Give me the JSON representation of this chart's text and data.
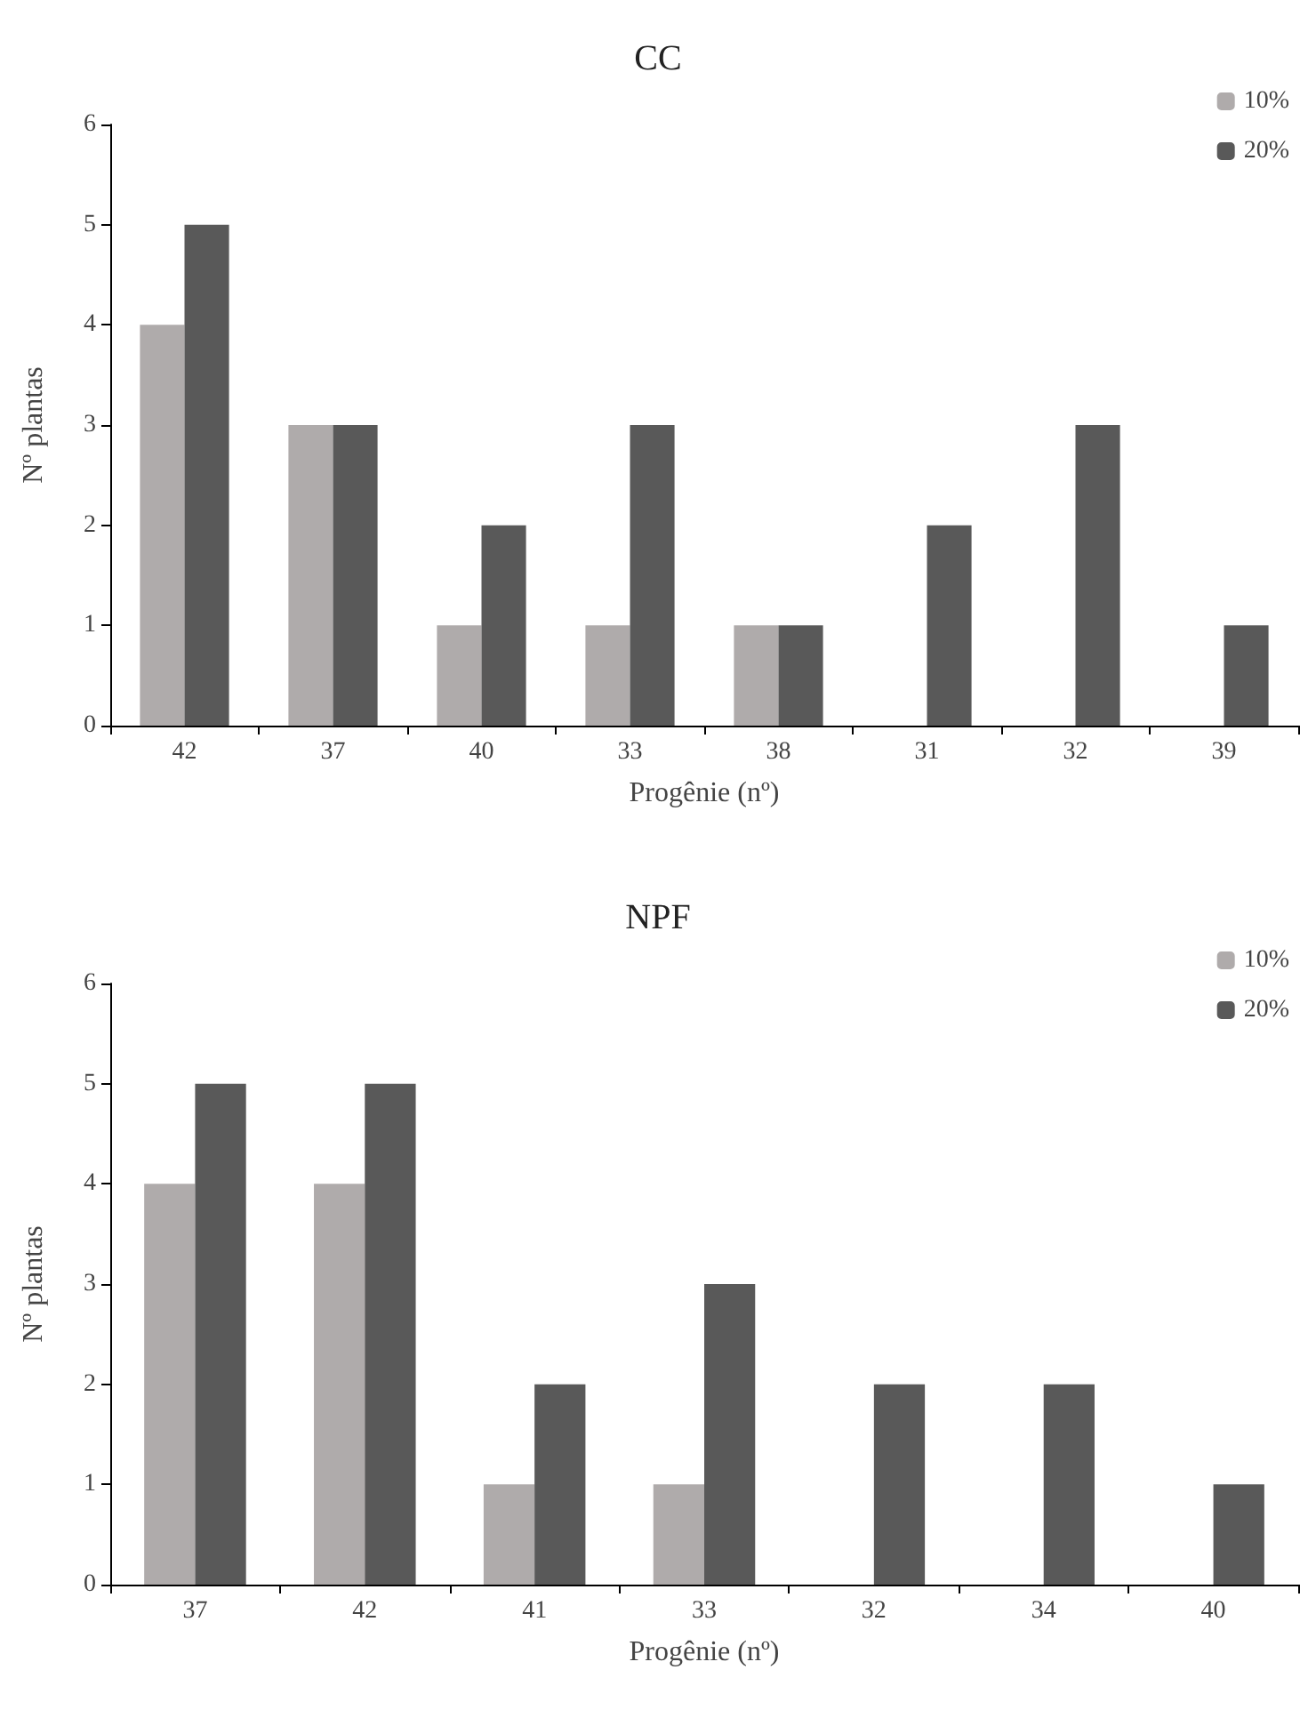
{
  "chart_data": [
    {
      "type": "bar",
      "title": "CC",
      "xlabel": "Progênie (nº)",
      "ylabel": "Nº plantas",
      "categories": [
        "42",
        "37",
        "40",
        "33",
        "38",
        "31",
        "32",
        "39"
      ],
      "series": [
        {
          "name": "10%",
          "color": "#afabab",
          "values": [
            4,
            3,
            1,
            1,
            1,
            0,
            0,
            0
          ]
        },
        {
          "name": "20%",
          "color": "#595959",
          "values": [
            5,
            3,
            2,
            3,
            1,
            2,
            3,
            1
          ]
        }
      ],
      "ylim": [
        0,
        6
      ],
      "yticks": [
        0,
        1,
        2,
        3,
        4,
        5,
        6
      ],
      "grid": false,
      "legend": "top right"
    },
    {
      "type": "bar",
      "title": "NPF",
      "xlabel": "Progênie (nº)",
      "ylabel": "Nº plantas",
      "categories": [
        "37",
        "42",
        "41",
        "33",
        "32",
        "34",
        "40"
      ],
      "series": [
        {
          "name": "10%",
          "color": "#afabab",
          "values": [
            4,
            4,
            1,
            1,
            0,
            0,
            0
          ]
        },
        {
          "name": "20%",
          "color": "#595959",
          "values": [
            5,
            5,
            2,
            3,
            2,
            2,
            1
          ]
        }
      ],
      "ylim": [
        0,
        6
      ],
      "yticks": [
        0,
        1,
        2,
        3,
        4,
        5,
        6
      ],
      "grid": false,
      "legend": "top right"
    }
  ]
}
